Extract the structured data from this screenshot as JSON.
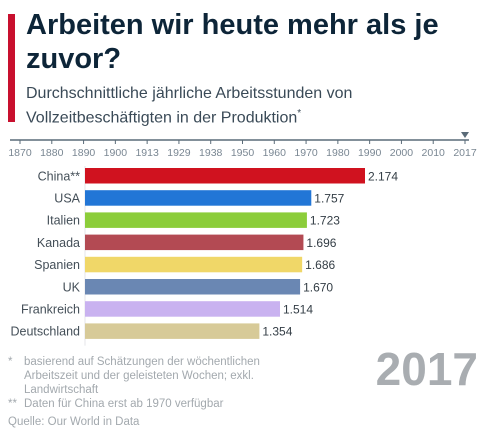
{
  "header": {
    "title": "Arbeiten wir heute mehr als je zuvor?",
    "subtitle": "Durchschnittliche jährliche Arbeitsstunden von Vollzeitbeschäftigten in der Produktion",
    "subtitle_mark": "*"
  },
  "timeline": {
    "years": [
      "1870",
      "1880",
      "1890",
      "1900",
      "1913",
      "1929",
      "1938",
      "1950",
      "1960",
      "1970",
      "1980",
      "1990",
      "2000",
      "2010",
      "2017"
    ],
    "selected": "2017",
    "color": "#5a6b78"
  },
  "chart_data": {
    "type": "bar",
    "orientation": "horizontal",
    "title": "",
    "xlabel": "",
    "ylabel": "",
    "categories": [
      "China**",
      "USA",
      "Italien",
      "Kanada",
      "Spanien",
      "UK",
      "Frankreich",
      "Deutschland"
    ],
    "values": [
      2174,
      1757,
      1723,
      1696,
      1686,
      1670,
      1514,
      1354
    ],
    "value_labels": [
      "2.174",
      "1.757",
      "1.723",
      "1.696",
      "1.686",
      "1.670",
      "1.514",
      "1.354"
    ],
    "colors": [
      "#d0121f",
      "#2276d6",
      "#8ccd3a",
      "#b34a53",
      "#f0d768",
      "#6a87b3",
      "#c9b2f0",
      "#d7ca98"
    ],
    "xlim": [
      0,
      2174
    ],
    "grid": false,
    "legend": "none"
  },
  "footnotes": [
    {
      "mark": "*",
      "text": "basierend auf Schätzungen der wöchentlichen Arbeitszeit und der geleisteten Wochen; exkl. Landwirtschaft"
    },
    {
      "mark": "**",
      "text": "Daten für China erst ab 1970 verfügbar"
    }
  ],
  "source": "Quelle: Our World in Data",
  "year_label": "2017",
  "colors": {
    "accent": "#c8102e",
    "title": "#0d2538",
    "muted": "#a3a9ae"
  }
}
